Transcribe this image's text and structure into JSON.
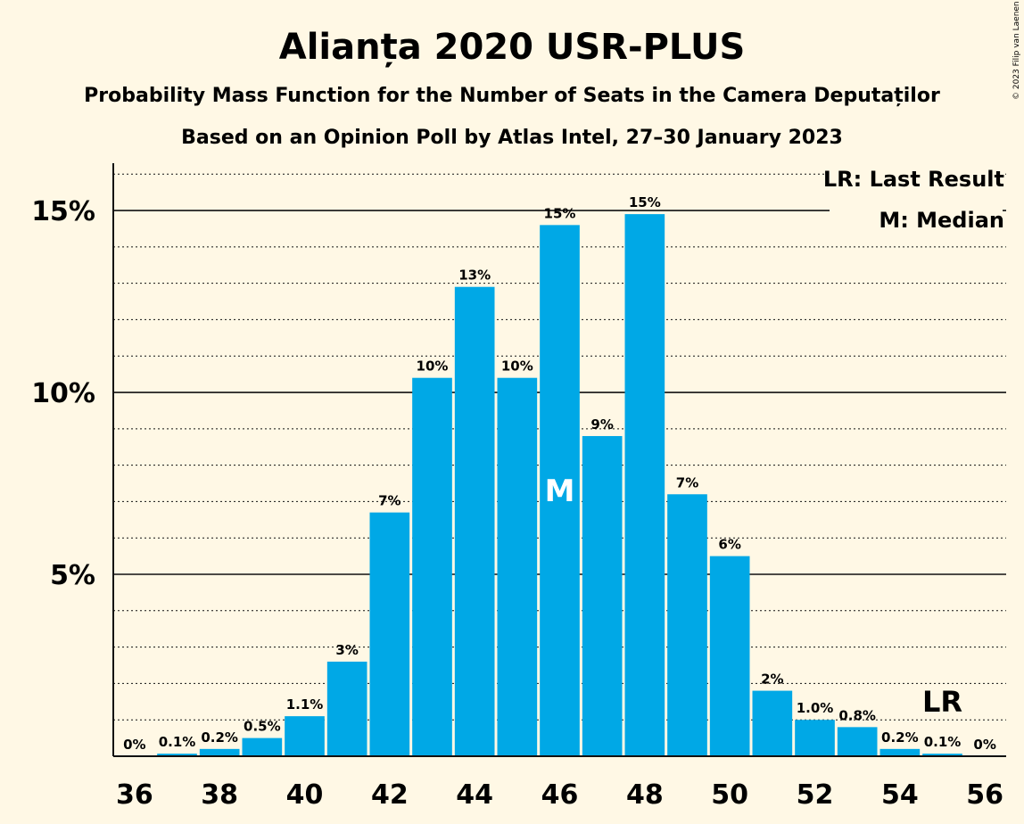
{
  "chart_data": {
    "type": "bar",
    "title": "Alianța 2020 USR-PLUS",
    "subtitle": "Probability Mass Function for the Number of Seats in the Camera Deputaților",
    "subtitle2": "Based on an Opinion Poll by Atlas Intel, 27–30 January 2023",
    "x_tick_labels": [
      "36",
      "38",
      "40",
      "42",
      "44",
      "46",
      "48",
      "50",
      "52",
      "54",
      "56"
    ],
    "y_tick_labels": [
      "5%",
      "10%",
      "15%"
    ],
    "ylim": [
      0,
      16.3
    ],
    "xlim": [
      35.5,
      56.5
    ],
    "grid": true,
    "legend_position": "top-right",
    "bar_color": "#00a8e6",
    "x": [
      36,
      37,
      38,
      39,
      40,
      41,
      42,
      43,
      44,
      45,
      46,
      47,
      48,
      49,
      50,
      51,
      52,
      53,
      54,
      55,
      56
    ],
    "values": [
      0,
      0.07,
      0.2,
      0.5,
      1.1,
      2.6,
      6.7,
      10.4,
      12.9,
      10.4,
      14.6,
      8.8,
      14.9,
      7.2,
      5.5,
      1.8,
      1.0,
      0.8,
      0.2,
      0.07,
      0
    ],
    "data_labels": [
      "0%",
      "0.1%",
      "0.2%",
      "0.5%",
      "1.1%",
      "3%",
      "7%",
      "10%",
      "13%",
      "10%",
      "15%",
      "9%",
      "15%",
      "7%",
      "6%",
      "2%",
      "1.0%",
      "0.8%",
      "0.2%",
      "0.1%",
      "0%"
    ],
    "median_seat": 46,
    "median_marker": "M",
    "last_result_seat": 55,
    "last_result_marker": "LR",
    "legend": [
      "LR: Last Result",
      "M: Median"
    ]
  },
  "credit": "© 2023 Filip van Laenen"
}
